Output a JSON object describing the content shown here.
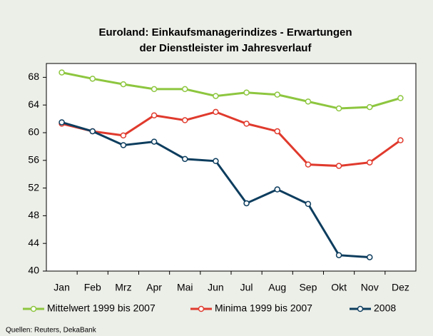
{
  "chart_data": {
    "type": "line",
    "title": [
      "Euroland: Einkaufsmanagerindizes - Erwartungen",
      "der Dienstleister im Jahresverlauf"
    ],
    "categories": [
      "Jan",
      "Feb",
      "Mrz",
      "Apr",
      "Mai",
      "Jun",
      "Jul",
      "Aug",
      "Sep",
      "Okt",
      "Nov",
      "Dez"
    ],
    "series": [
      {
        "name": "Mittelwert 1999 bis 2007",
        "color": "#8dc63f",
        "values": [
          68.7,
          67.8,
          67.0,
          66.3,
          66.3,
          65.3,
          65.8,
          65.5,
          64.5,
          63.5,
          63.7,
          65.0
        ]
      },
      {
        "name": "Minima 1999 bis 2007",
        "color": "#e03a2d",
        "values": [
          61.3,
          60.2,
          59.6,
          62.5,
          61.8,
          63.0,
          61.3,
          60.2,
          55.4,
          55.2,
          55.7,
          58.9
        ]
      },
      {
        "name": "2008",
        "color": "#0d3d5e",
        "values": [
          61.5,
          60.2,
          58.2,
          58.7,
          56.2,
          55.9,
          49.8,
          51.8,
          49.7,
          42.3,
          42.0,
          null
        ]
      }
    ],
    "ylim": [
      40,
      70
    ],
    "yticks": [
      40,
      44,
      48,
      52,
      56,
      60,
      64,
      68
    ],
    "grid": false,
    "legend": "bottom",
    "source": "Quellen: Reuters, DekaBank"
  }
}
